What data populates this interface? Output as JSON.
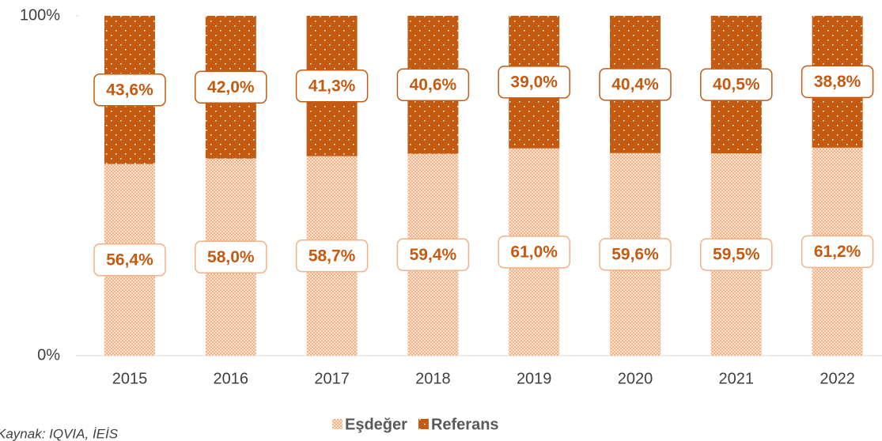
{
  "chart_data": {
    "type": "stacked_bar",
    "categories": [
      "2015",
      "2016",
      "2017",
      "2018",
      "2019",
      "2020",
      "2021",
      "2022"
    ],
    "series": [
      {
        "name": "Eşdeğer",
        "color": "#f4b183",
        "values": [
          56.4,
          58.0,
          58.7,
          59.4,
          61.0,
          59.6,
          59.5,
          61.2
        ],
        "value_labels": [
          "56,4%",
          "58,0%",
          "58,7%",
          "59,4%",
          "61,0%",
          "59,6%",
          "59,5%",
          "61,2%"
        ]
      },
      {
        "name": "Referans",
        "color": "#c55a11",
        "values": [
          43.6,
          42.0,
          41.3,
          40.6,
          39.0,
          40.4,
          40.5,
          38.8
        ],
        "value_labels": [
          "43,6%",
          "42,0%",
          "41,3%",
          "40,6%",
          "39,0%",
          "40,4%",
          "40,5%",
          "38,8%"
        ]
      }
    ],
    "ylim": [
      0,
      100
    ],
    "yticks": [
      {
        "value": 0,
        "label": "0%"
      },
      {
        "value": 100,
        "label": "100%"
      }
    ],
    "legend": "bottom",
    "note": "Kaynak: IQVIA, İEİS"
  }
}
